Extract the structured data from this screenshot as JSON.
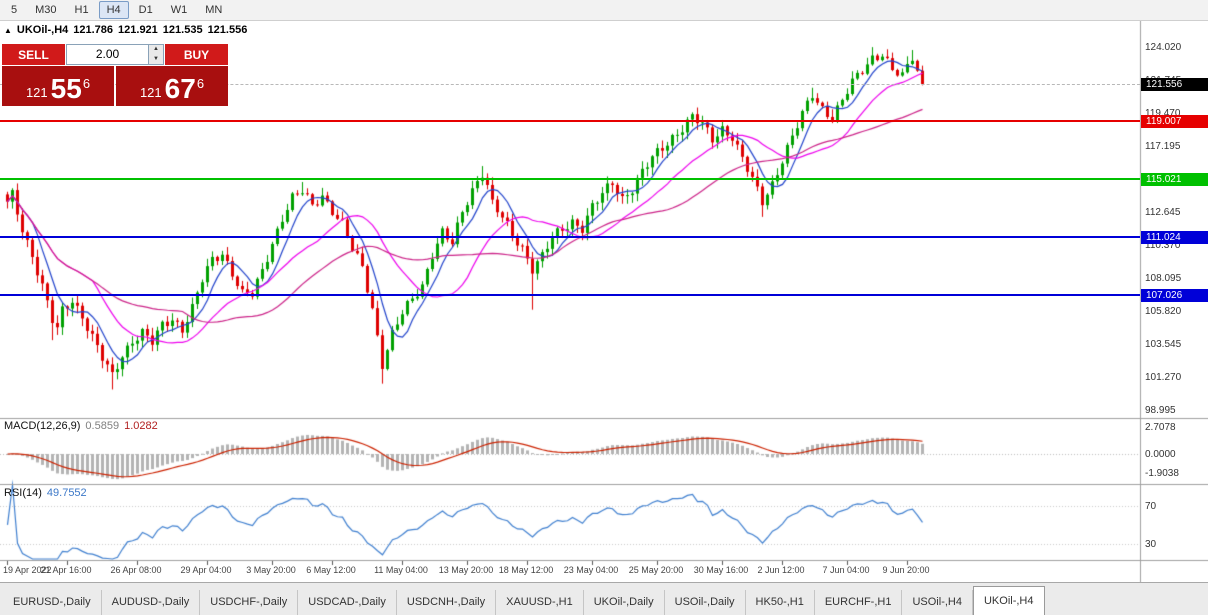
{
  "toolbar": {
    "timeframe_buttons": [
      "5",
      "M30",
      "H1",
      "H4",
      "D1",
      "W1",
      "MN"
    ],
    "active": "H4"
  },
  "chart_header": {
    "marker": "▲",
    "symbol": "UKOil-,H4",
    "open": "121.786",
    "high": "121.921",
    "low": "121.535",
    "close": "121.556"
  },
  "trade_panel": {
    "sell_label": "SELL",
    "buy_label": "BUY",
    "volume": "2.00",
    "spinner_up": "▲",
    "spinner_down": "▼",
    "sell_price": {
      "int": "121",
      "main": "55",
      "sup": "6"
    },
    "buy_price": {
      "int": "121",
      "main": "67",
      "sup": "6"
    }
  },
  "price_axis": {
    "labels": [
      "124.020",
      "121.745",
      "119.470",
      "117.195",
      "114.920",
      "112.645",
      "110.370",
      "108.095",
      "105.820",
      "103.545",
      "101.270",
      "98.995"
    ]
  },
  "current_price": {
    "value": "121.556",
    "badge_color": "#000000"
  },
  "levels": [
    {
      "value": "119.007",
      "color": "#e60000"
    },
    {
      "value": "115.021",
      "color": "#00c000"
    },
    {
      "value": "111.024",
      "color": "#0000d8"
    },
    {
      "value": "107.026",
      "color": "#0000d8"
    }
  ],
  "time_axis": [
    {
      "text": "19 Apr 2022",
      "bar": 0
    },
    {
      "text": "21 Apr 16:00",
      "bar": 12
    },
    {
      "text": "26 Apr 08:00",
      "bar": 26
    },
    {
      "text": "29 Apr 04:00",
      "bar": 40
    },
    {
      "text": "3 May 20:00",
      "bar": 53
    },
    {
      "text": "6 May 12:00",
      "bar": 65
    },
    {
      "text": "11 May 04:00",
      "bar": 79
    },
    {
      "text": "13 May 20:00",
      "bar": 92
    },
    {
      "text": "18 May 12:00",
      "bar": 104
    },
    {
      "text": "23 May 04:00",
      "bar": 117
    },
    {
      "text": "25 May 20:00",
      "bar": 130
    },
    {
      "text": "30 May 16:00",
      "bar": 143
    },
    {
      "text": "2 Jun 12:00",
      "bar": 155
    },
    {
      "text": "7 Jun 04:00",
      "bar": 168
    },
    {
      "text": "9 Jun 20:00",
      "bar": 180
    }
  ],
  "chart_data": {
    "type": "candlestick",
    "symbol": "UKOil-,H4",
    "bar_count": 184,
    "up_color": "#00a000",
    "down_color": "#de0000",
    "visible_range": {
      "high": 124.1,
      "low": 100.4
    },
    "trend_anchors": [
      [
        0,
        113.3
      ],
      [
        1,
        113.9
      ],
      [
        3,
        111.6
      ],
      [
        5,
        109.8
      ],
      [
        7,
        107.6
      ],
      [
        9,
        105.2
      ],
      [
        10,
        104.6
      ],
      [
        11,
        105.9
      ],
      [
        13,
        106.7
      ],
      [
        15,
        105.6
      ],
      [
        17,
        104.1
      ],
      [
        19,
        102.6
      ],
      [
        21,
        101.4
      ],
      [
        23,
        102.9
      ],
      [
        25,
        103.9
      ],
      [
        27,
        104.4
      ],
      [
        29,
        103.7
      ],
      [
        31,
        104.9
      ],
      [
        33,
        105.4
      ],
      [
        35,
        104.7
      ],
      [
        37,
        106.1
      ],
      [
        39,
        108.0
      ],
      [
        41,
        109.4
      ],
      [
        43,
        109.9
      ],
      [
        45,
        108.6
      ],
      [
        47,
        107.1
      ],
      [
        49,
        107.0
      ],
      [
        51,
        108.6
      ],
      [
        53,
        110.6
      ],
      [
        55,
        112.4
      ],
      [
        57,
        113.7
      ],
      [
        59,
        114.1
      ],
      [
        61,
        113.1
      ],
      [
        63,
        113.9
      ],
      [
        65,
        112.9
      ],
      [
        67,
        111.9
      ],
      [
        69,
        110.1
      ],
      [
        71,
        108.9
      ],
      [
        73,
        106.1
      ],
      [
        75,
        102.3
      ],
      [
        77,
        104.3
      ],
      [
        79,
        105.7
      ],
      [
        81,
        106.7
      ],
      [
        83,
        107.7
      ],
      [
        85,
        109.9
      ],
      [
        87,
        111.3
      ],
      [
        89,
        110.5
      ],
      [
        91,
        112.7
      ],
      [
        93,
        114.3
      ],
      [
        95,
        115.5
      ],
      [
        96,
        114.6
      ],
      [
        97,
        113.3
      ],
      [
        99,
        112.3
      ],
      [
        101,
        111.1
      ],
      [
        103,
        110.3
      ],
      [
        105,
        108.9
      ],
      [
        107,
        109.7
      ],
      [
        109,
        110.9
      ],
      [
        111,
        111.5
      ],
      [
        113,
        112.1
      ],
      [
        115,
        111.7
      ],
      [
        117,
        113.1
      ],
      [
        119,
        113.9
      ],
      [
        121,
        114.7
      ],
      [
        123,
        113.7
      ],
      [
        125,
        114.4
      ],
      [
        127,
        115.5
      ],
      [
        129,
        116.4
      ],
      [
        131,
        117.1
      ],
      [
        133,
        117.9
      ],
      [
        135,
        118.6
      ],
      [
        137,
        119.3
      ],
      [
        139,
        118.7
      ],
      [
        141,
        117.7
      ],
      [
        143,
        118.5
      ],
      [
        145,
        118.0
      ],
      [
        147,
        116.4
      ],
      [
        149,
        114.9
      ],
      [
        151,
        113.4
      ],
      [
        153,
        114.7
      ],
      [
        155,
        116.4
      ],
      [
        157,
        117.9
      ],
      [
        159,
        119.4
      ],
      [
        161,
        120.8
      ],
      [
        163,
        119.9
      ],
      [
        165,
        119.3
      ],
      [
        167,
        120.4
      ],
      [
        169,
        121.6
      ],
      [
        171,
        122.5
      ],
      [
        173,
        123.4
      ],
      [
        175,
        123.7
      ],
      [
        177,
        122.5
      ],
      [
        179,
        122.0
      ],
      [
        181,
        123.4
      ],
      [
        183,
        121.556
      ]
    ],
    "wick_extremes": [
      {
        "i": 9,
        "low": 103.9
      },
      {
        "i": 21,
        "low": 100.5
      },
      {
        "i": 59,
        "high": 114.8
      },
      {
        "i": 75,
        "low": 100.9
      },
      {
        "i": 95,
        "high": 115.9
      },
      {
        "i": 105,
        "low": 106.0
      },
      {
        "i": 137,
        "high": 119.6
      },
      {
        "i": 151,
        "low": 112.4
      },
      {
        "i": 161,
        "high": 121.3
      },
      {
        "i": 173,
        "high": 124.1
      },
      {
        "i": 181,
        "high": 123.9
      }
    ],
    "moving_averages": [
      {
        "period": 6,
        "color": "#2244cc"
      },
      {
        "period": 18,
        "color": "#ee00ee"
      },
      {
        "period": 36,
        "color": "#cc2288"
      }
    ],
    "indicators": {
      "macd": {
        "label": "MACD(12,26,9)",
        "value_main": "0.5859",
        "value_signal": "1.0282",
        "axis_labels": [
          "2.7078",
          "0.0000",
          "-1.9038"
        ],
        "histogram_color": "#b4b4b4",
        "signal_color": "#cc2200"
      },
      "rsi": {
        "label": "RSI(14)",
        "value": "49.7552",
        "level_labels": [
          "70",
          "30"
        ],
        "line_color": "#4080d0"
      }
    }
  },
  "tabs": {
    "items": [
      "EURUSD-,Daily",
      "AUDUSD-,Daily",
      "USDCHF-,Daily",
      "USDCAD-,Daily",
      "USDCNH-,Daily",
      "XAUUSD-,H1",
      "UKOil-,Daily",
      "USOil-,Daily",
      "HK50-,H1",
      "EURCHF-,H1",
      "USOil-,H4",
      "UKOil-,H4"
    ],
    "active": "UKOil-,H4"
  }
}
